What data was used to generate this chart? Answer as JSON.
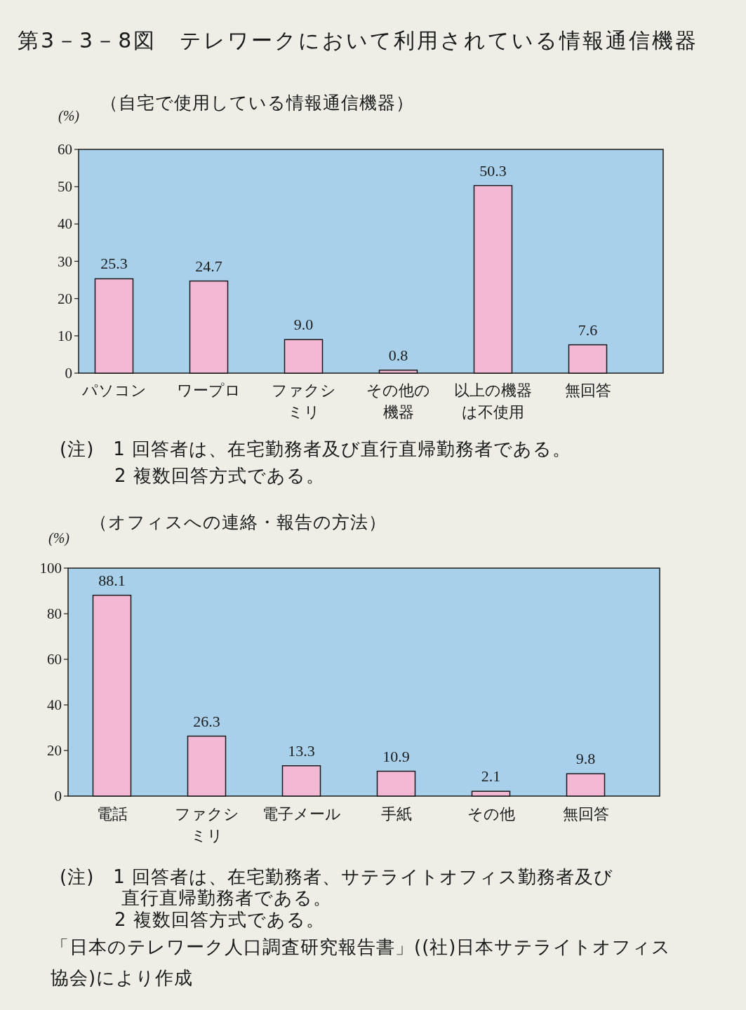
{
  "chart_data": [
    {
      "type": "bar",
      "title": "第3－3－8図　テレワークにおいて利用されている情報通信機器",
      "subtitle": "（自宅で使用している情報通信機器）",
      "ylabel": "(%)",
      "categories": [
        "パソコン",
        "ワープロ",
        "ファクシミリ",
        "その他の機器",
        "以上の機器は不使用",
        "無回答"
      ],
      "values": [
        25.3,
        24.7,
        9.0,
        0.8,
        50.3,
        7.6
      ],
      "value_labels": [
        "25.3",
        "24.7",
        "9.0",
        "0.8",
        "50.3",
        "7.6"
      ],
      "color": "#f2b8d4",
      "ylim": [
        0,
        60
      ],
      "yticks": [
        0,
        10,
        20,
        30,
        40,
        50,
        60
      ],
      "annotations": [
        "(注)　1 回答者は、在宅勤務者及び直行直帰勤務者である。",
        "2 複数回答方式である。"
      ]
    },
    {
      "type": "bar",
      "subtitle": "（オフィスへの連絡・報告の方法）",
      "ylabel": "(%)",
      "categories": [
        "電話",
        "ファクシミリ",
        "電子メール",
        "手紙",
        "その他",
        "無回答"
      ],
      "values": [
        88.1,
        26.3,
        13.3,
        10.9,
        2.1,
        9.8
      ],
      "value_labels": [
        "88.1",
        "26.3",
        "13.3",
        "10.9",
        "2.1",
        "9.8"
      ],
      "color": "#f2b8d4",
      "ylim": [
        0,
        100
      ],
      "yticks": [
        0,
        20,
        40,
        60,
        80,
        100
      ],
      "annotations": [
        "(注)　1 回答者は、在宅勤務者、サテライトオフィス勤務者及び直行直帰勤務者である。",
        "2 複数回答方式である。",
        "「日本のテレワーク人口調査研究報告書」((社)日本サテライトオフィス協会)により作成"
      ]
    }
  ]
}
